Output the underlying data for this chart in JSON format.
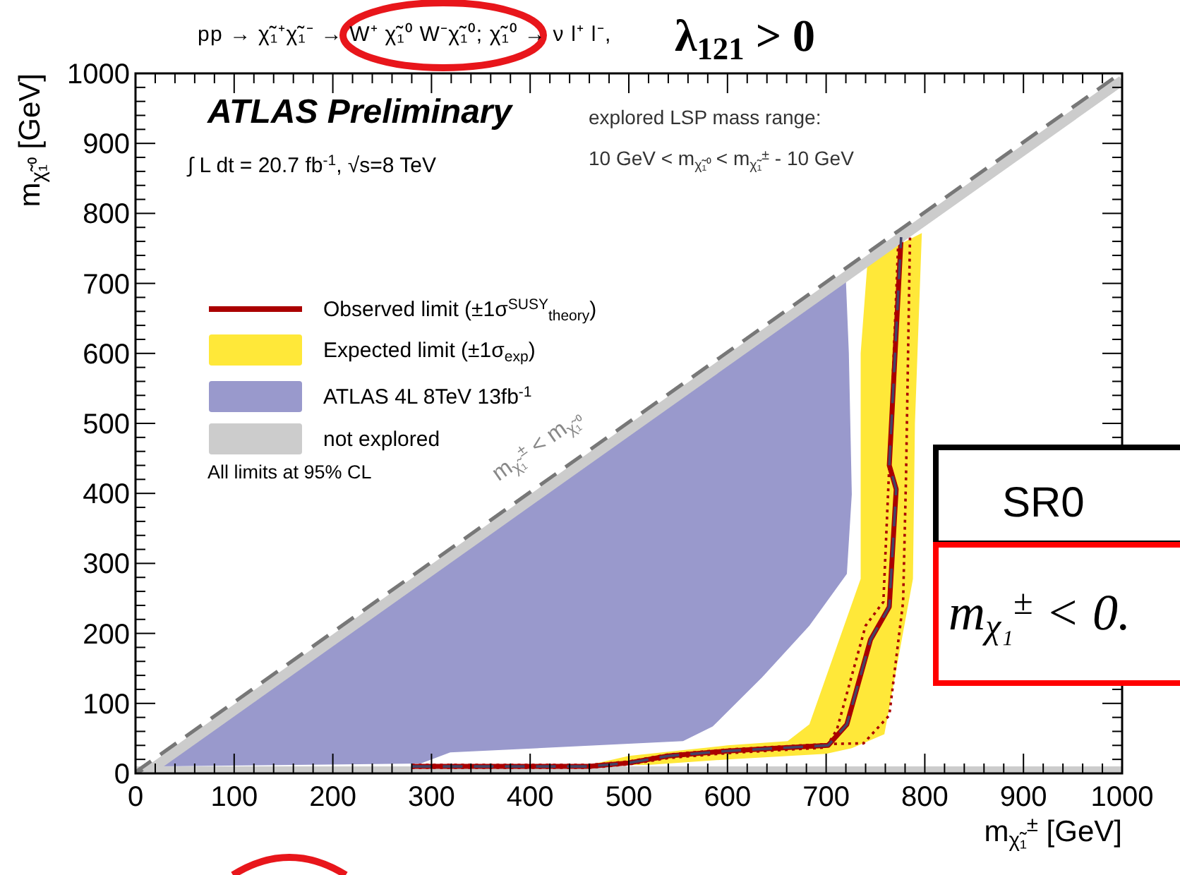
{
  "chart_data": {
    "type": "line",
    "title": "pp → χ̃₁⁺χ̃₁⁻ → W⁺ χ̃₁⁰ W⁻χ̃₁⁰;  χ̃₁⁰ → ν l⁺ l⁻,",
    "subtitle": "λ$_{121}$ > 0",
    "xlabel": "m$_{χ̃₁}$$^{±}$ [GeV]",
    "ylabel": "m$_{χ̃₁⁰}$ [GeV]",
    "xlim": [
      0,
      1000
    ],
    "ylim": [
      0,
      1000
    ],
    "xticks": [
      0,
      100,
      200,
      300,
      400,
      500,
      600,
      700,
      800,
      900,
      1000
    ],
    "yticks": [
      0,
      100,
      200,
      300,
      400,
      500,
      600,
      700,
      800,
      900,
      1000
    ],
    "grid": false,
    "legend": "top left",
    "annotations": [
      "ATLAS Preliminary",
      "∫ L dt = 20.7 fb$^{-1}$, √s=8 TeV",
      "explored LSP mass range:",
      "10 GeV < m$_{χ̃₁⁰}$ < m$_{χ̃₁}$$^{±}$ - 10 GeV",
      "All limits at 95% CL",
      {
        "text": "m$_{χ̃₁}$$^{±}$ < m$_{χ̃₁⁰}$",
        "x": 440,
        "y": 440
      },
      "SR0",
      "m$_{χ₁}$$^{±}$ < 0."
    ],
    "bands": [
      {
        "axis": "y",
        "from": 0,
        "to": 10,
        "color": "#cccccc"
      }
    ],
    "series": [
      {
        "name": "Observed limit (±1σ$^{SUSY}$$_{theory}$)",
        "color": "#aa0000",
        "x": [
          280,
          460,
          500,
          540,
          600,
          650,
          702,
          721,
          745,
          764,
          771,
          764,
          776
        ],
        "values": [
          10,
          10,
          15,
          25,
          32,
          36,
          40,
          70,
          191,
          238,
          406,
          440,
          766
        ]
      },
      {
        "name": "Expected limit (±1σ$_{exp}$)",
        "type": "area",
        "color": "#ffe839",
        "x": [
          742,
          735,
          735,
          683,
          661,
          600,
          500,
          460,
          520,
          600,
          700,
          726,
          759,
          788,
          790,
          797
        ],
        "values": [
          732,
          600,
          278,
          70,
          46,
          40,
          25,
          12,
          12,
          20,
          28,
          36,
          56,
          278,
          500,
          772
        ]
      },
      {
        "name": "ATLAS 4L 8TeV 13fb$^{-1}$",
        "type": "area",
        "color": "#9999cc",
        "x": [
          20,
          720,
          723,
          726,
          721,
          683,
          635,
          585,
          555,
          319,
          289,
          20
        ],
        "values": [
          10,
          705,
          601,
          399,
          285,
          211,
          137,
          67,
          46,
          30,
          14,
          10
        ]
      },
      {
        "name": "not explored",
        "color": "#cccccc",
        "x": [
          10,
          1000
        ],
        "values": [
          0,
          990
        ]
      },
      {
        "color": "#777777",
        "line_style": "dashed",
        "x": [
          0,
          1000
        ],
        "values": [
          0,
          1000
        ]
      },
      {
        "color": "#aa0000",
        "line_style": "dotted",
        "x": [
          280,
          460,
          500,
          540,
          600,
          650,
          700,
          711,
          740,
          758,
          764,
          773
        ],
        "values": [
          8,
          8,
          13,
          22,
          29,
          33,
          37,
          63,
          211,
          245,
          440,
          755
        ]
      },
      {
        "color": "#aa0000",
        "line_style": "dotted",
        "x": [
          280,
          460,
          500,
          540,
          600,
          650,
          702,
          738,
          764,
          778,
          781,
          785
        ],
        "values": [
          12,
          12,
          17,
          27,
          34,
          38,
          42,
          43,
          83,
          245,
          426,
          766
        ]
      },
      {
        "color": "#444466",
        "line_style": "dashed",
        "x": [
          280,
          460,
          500,
          540,
          600,
          650,
          702,
          721,
          745,
          764,
          771,
          764,
          776
        ],
        "values": [
          10,
          10,
          15,
          25,
          32,
          36,
          40,
          70,
          191,
          238,
          406,
          440,
          766
        ]
      }
    ]
  }
}
